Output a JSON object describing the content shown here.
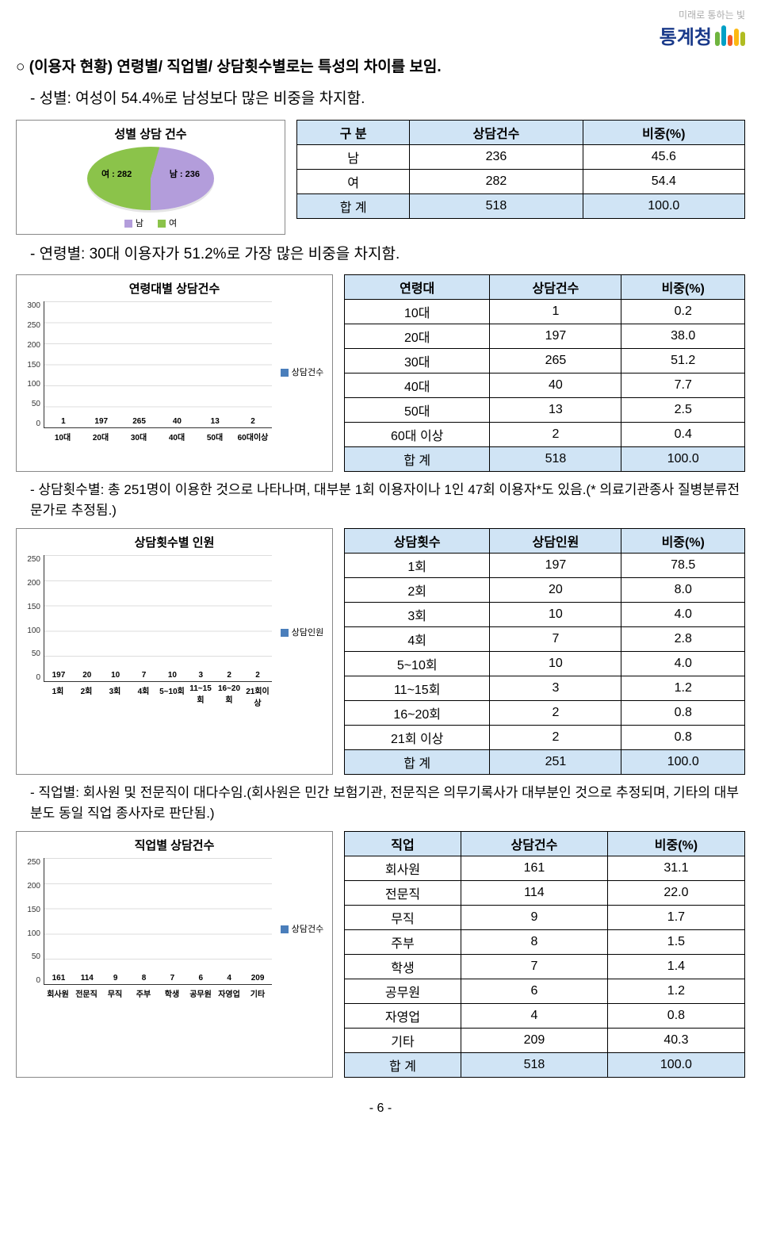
{
  "logo": {
    "tagline": "미래로 통하는 빛",
    "name": "통계청",
    "bar_colors": [
      "#6fb43f",
      "#00a0c6",
      "#f15a29",
      "#fdb913",
      "#b0bc22"
    ]
  },
  "heading": "○ (이용자 현황) 연령별/ 직업별/ 상담횟수별로는 특성의 차이를 보임.",
  "gender": {
    "line": "- 성별: 여성이 54.4%로 남성보다 많은 비중을 차지함.",
    "chart_title": "성별 상담 건수",
    "pie": {
      "female_label": "여 : 282",
      "male_label": "남 : 236",
      "female_color": "#8bc34a",
      "male_color": "#b39ddb",
      "female_pct": 54.4
    },
    "legend_m": "남",
    "legend_f": "여",
    "table": {
      "cols": [
        "구 분",
        "상담건수",
        "비중(%)"
      ],
      "rows": [
        [
          "남",
          "236",
          "45.6"
        ],
        [
          "여",
          "282",
          "54.4"
        ]
      ],
      "sum": [
        "합 계",
        "518",
        "100.0"
      ]
    }
  },
  "age": {
    "line": "- 연령별: 30대 이용자가 51.2%로 가장 많은 비중을 차지함.",
    "chart_title": "연령대별 상담건수",
    "legend_label": "상담건수",
    "ymax": 300,
    "ystep": 50,
    "categories": [
      "10대",
      "20대",
      "30대",
      "40대",
      "50대",
      "60대이상"
    ],
    "values": [
      1,
      197,
      265,
      40,
      13,
      2
    ],
    "bar_color": "#4a7ebb",
    "table": {
      "cols": [
        "연령대",
        "상담건수",
        "비중(%)"
      ],
      "rows": [
        [
          "10대",
          "1",
          "0.2"
        ],
        [
          "20대",
          "197",
          "38.0"
        ],
        [
          "30대",
          "265",
          "51.2"
        ],
        [
          "40대",
          "40",
          "7.7"
        ],
        [
          "50대",
          "13",
          "2.5"
        ],
        [
          "60대 이상",
          "2",
          "0.4"
        ]
      ],
      "sum": [
        "합 계",
        "518",
        "100.0"
      ]
    }
  },
  "count": {
    "line": "- 상담횟수별: 총 251명이 이용한 것으로 나타나며, 대부분 1회 이용자이나 1인 47회 이용자*도 있음.(* 의료기관종사 질병분류전문가로 추정됨.)",
    "chart_title": "상담횟수별 인원",
    "legend_label": "상담인원",
    "ymax": 250,
    "ystep": 50,
    "categories": [
      "1회",
      "2회",
      "3회",
      "4회",
      "5~10회",
      "11~15회",
      "16~20회",
      "21회이상"
    ],
    "values": [
      197,
      20,
      10,
      7,
      10,
      3,
      2,
      2
    ],
    "bar_color": "#4a7ebb",
    "table": {
      "cols": [
        "상담횟수",
        "상담인원",
        "비중(%)"
      ],
      "rows": [
        [
          "1회",
          "197",
          "78.5"
        ],
        [
          "2회",
          "20",
          "8.0"
        ],
        [
          "3회",
          "10",
          "4.0"
        ],
        [
          "4회",
          "7",
          "2.8"
        ],
        [
          "5~10회",
          "10",
          "4.0"
        ],
        [
          "11~15회",
          "3",
          "1.2"
        ],
        [
          "16~20회",
          "2",
          "0.8"
        ],
        [
          "21회 이상",
          "2",
          "0.8"
        ]
      ],
      "sum": [
        "합 계",
        "251",
        "100.0"
      ]
    }
  },
  "job": {
    "line": "- 직업별: 회사원 및 전문직이 대다수임.(회사원은 민간 보험기관, 전문직은 의무기록사가 대부분인 것으로 추정되며, 기타의 대부분도 동일 직업 종사자로 판단됨.)",
    "chart_title": "직업별 상담건수",
    "legend_label": "상담건수",
    "ymax": 250,
    "ystep": 50,
    "categories": [
      "회사원",
      "전문직",
      "무직",
      "주부",
      "학생",
      "공무원",
      "자영업",
      "기타"
    ],
    "values": [
      161,
      114,
      9,
      8,
      7,
      6,
      4,
      209
    ],
    "bar_color": "#4a7ebb",
    "table": {
      "cols": [
        "직업",
        "상담건수",
        "비중(%)"
      ],
      "rows": [
        [
          "회사원",
          "161",
          "31.1"
        ],
        [
          "전문직",
          "114",
          "22.0"
        ],
        [
          "무직",
          "9",
          "1.7"
        ],
        [
          "주부",
          "8",
          "1.5"
        ],
        [
          "학생",
          "7",
          "1.4"
        ],
        [
          "공무원",
          "6",
          "1.2"
        ],
        [
          "자영업",
          "4",
          "0.8"
        ],
        [
          "기타",
          "209",
          "40.3"
        ]
      ],
      "sum": [
        "합 계",
        "518",
        "100.0"
      ]
    }
  },
  "page_num": "- 6 -"
}
